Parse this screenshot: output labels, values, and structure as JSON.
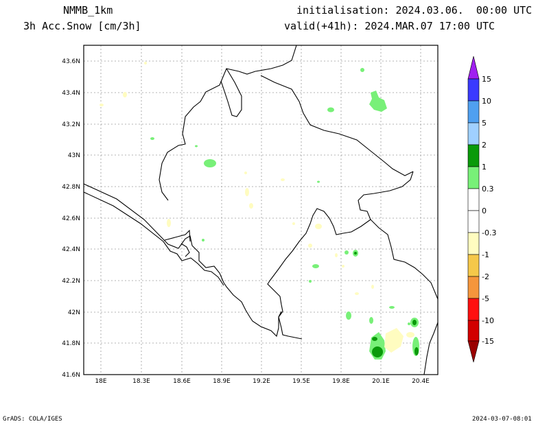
{
  "header": {
    "model": "NMMB_1km",
    "field": "3h Acc.Snow [cm/3h]",
    "init": "initialisation: 2024.03.06.  00:00 UTC",
    "valid": "valid(+41h): 2024.MAR.07 17:00 UTC"
  },
  "footer": {
    "left": "GrADS: COLA/IGES",
    "right": "2024-03-07-08:01"
  },
  "map": {
    "lon_ticks": [
      "18E",
      "18.3E",
      "18.6E",
      "18.9E",
      "19.2E",
      "19.5E",
      "19.8E",
      "20.1E",
      "20.4E"
    ],
    "lat_ticks": [
      "43.6N",
      "43.4N",
      "43.2N",
      "43N",
      "42.8N",
      "42.6N",
      "42.4N",
      "42.2N",
      "42N",
      "41.8N",
      "41.6N"
    ],
    "lon_range": [
      17.87,
      20.6
    ],
    "lat_range": [
      41.6,
      43.7
    ]
  },
  "colorbar": {
    "labels": [
      "15",
      "10",
      "5",
      "2",
      "1",
      "0.3",
      "0",
      "-0.3",
      "-1",
      "-2",
      "-5",
      "-10",
      "-15"
    ],
    "colors": {
      "c15": "#a020f0",
      "c10": "#3a3aff",
      "c5": "#50a0f0",
      "c2": "#a0d0ff",
      "c1": "#0a9a0a",
      "c03": "#78f078",
      "c0": "#ffffff",
      "cm03": "#fffcc0",
      "cm1": "#f5c84a",
      "cm2": "#f5963c",
      "cm5": "#ff1010",
      "cm10": "#d20000",
      "cm15": "#9a0000"
    }
  }
}
